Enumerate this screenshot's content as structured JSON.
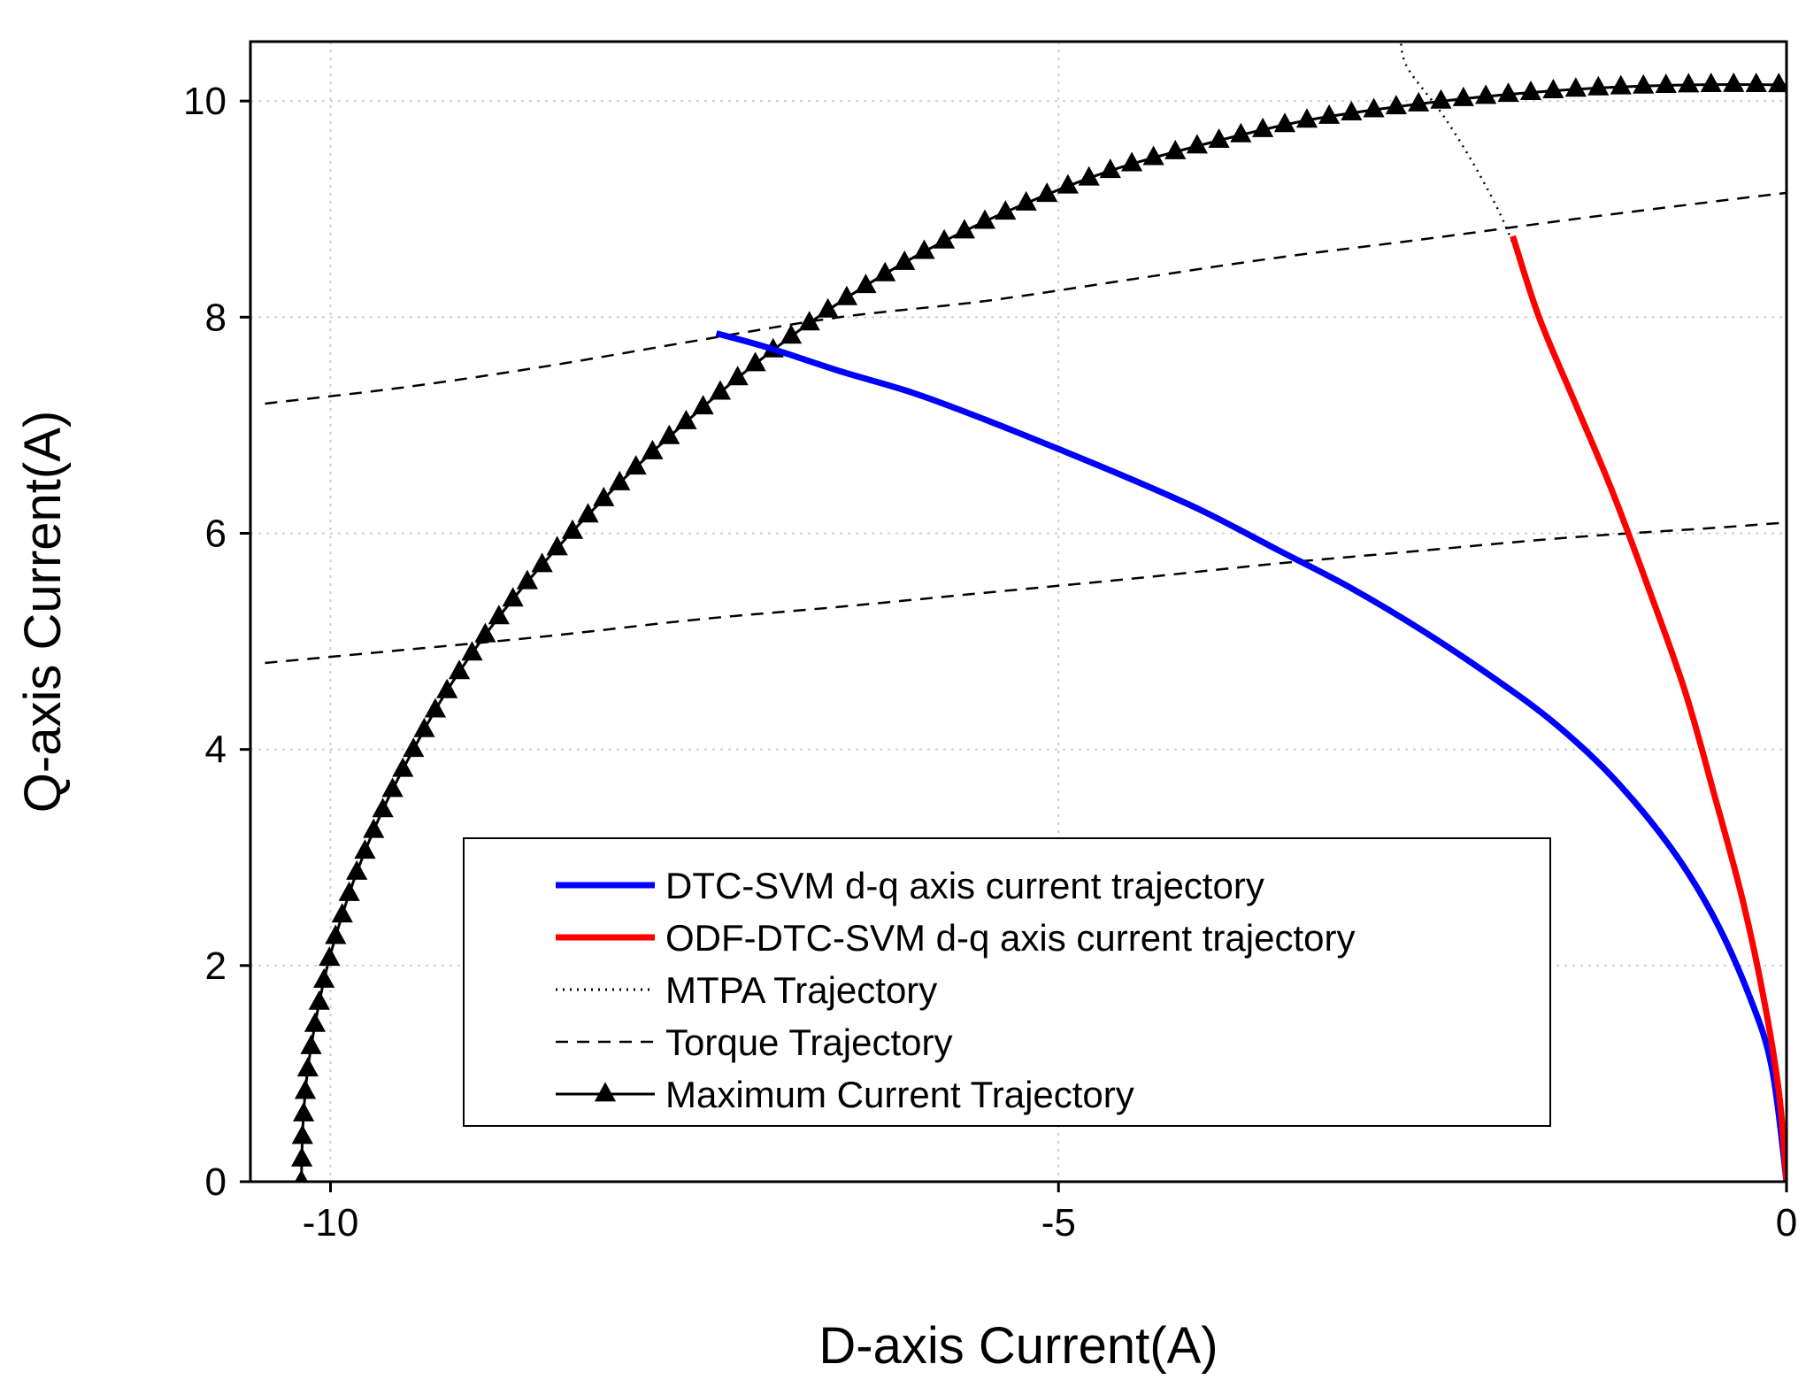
{
  "chart_data": {
    "type": "line",
    "title": "",
    "xlabel": "D-axis Current(A)",
    "ylabel": "Q-axis Current(A)",
    "xlim": [
      -10.55,
      0
    ],
    "ylim": [
      0,
      10.55
    ],
    "xticks": [
      -10,
      -5,
      0
    ],
    "xtick_labels": [
      "-10",
      "-5",
      "0"
    ],
    "yticks": [
      0,
      2,
      4,
      6,
      8,
      10
    ],
    "ytick_labels": [
      "0",
      "2",
      "4",
      "6",
      "8",
      "10"
    ],
    "grid": true,
    "legend_position": "lower-center",
    "series": [
      {
        "name": "DTC-SVM d-q axis current trajectory",
        "style": "solid-thick",
        "color": "#0000ff",
        "points": [
          [
            0,
            0
          ],
          [
            -0.1,
            1.05
          ],
          [
            -0.25,
            1.7
          ],
          [
            -0.5,
            2.45
          ],
          [
            -0.8,
            3.1
          ],
          [
            -1.2,
            3.75
          ],
          [
            -1.6,
            4.25
          ],
          [
            -2,
            4.65
          ],
          [
            -2.5,
            5.1
          ],
          [
            -3,
            5.5
          ],
          [
            -3.5,
            5.85
          ],
          [
            -4,
            6.2
          ],
          [
            -4.5,
            6.5
          ],
          [
            -5,
            6.78
          ],
          [
            -5.5,
            7.05
          ],
          [
            -6,
            7.3
          ],
          [
            -6.5,
            7.5
          ],
          [
            -7,
            7.72
          ],
          [
            -7.35,
            7.85
          ]
        ]
      },
      {
        "name": "ODF-DTC-SVM d-q axis current trajectory",
        "style": "solid-thick",
        "color": "#ff0000",
        "points": [
          [
            0,
            0
          ],
          [
            -0.05,
            0.8
          ],
          [
            -0.15,
            1.65
          ],
          [
            -0.3,
            2.6
          ],
          [
            -0.5,
            3.6
          ],
          [
            -0.7,
            4.55
          ],
          [
            -0.95,
            5.5
          ],
          [
            -1.2,
            6.4
          ],
          [
            -1.45,
            7.2
          ],
          [
            -1.7,
            8
          ],
          [
            -1.88,
            8.75
          ]
        ]
      },
      {
        "name": "MTPA Trajectory",
        "style": "dotted",
        "color": "#000000",
        "points": [
          [
            0,
            0
          ],
          [
            -0.05,
            0.8
          ],
          [
            -0.15,
            1.65
          ],
          [
            -0.3,
            2.6
          ],
          [
            -0.5,
            3.6
          ],
          [
            -0.7,
            4.55
          ],
          [
            -0.95,
            5.5
          ],
          [
            -1.2,
            6.4
          ],
          [
            -1.45,
            7.2
          ],
          [
            -1.7,
            8
          ],
          [
            -1.9,
            8.75
          ],
          [
            -2.1,
            9.3
          ],
          [
            -2.35,
            9.85
          ],
          [
            -2.6,
            10.3
          ],
          [
            -2.65,
            10.55
          ]
        ]
      },
      {
        "name": "Torque Trajectory",
        "style": "dashed",
        "color": "#000000",
        "points": [
          [
            -10.45,
            7.2
          ],
          [
            -9.5,
            7.35
          ],
          [
            -8.5,
            7.55
          ],
          [
            -7.5,
            7.78
          ],
          [
            -6.5,
            8
          ],
          [
            -5.5,
            8.15
          ],
          [
            -4.5,
            8.35
          ],
          [
            -3.5,
            8.55
          ],
          [
            -2.5,
            8.72
          ],
          [
            -1.5,
            8.9
          ],
          [
            -0.5,
            9.07
          ],
          [
            0,
            9.15
          ]
        ]
      },
      {
        "name": "",
        "style": "dashed",
        "color": "#000000",
        "points": [
          [
            -10.45,
            4.8
          ],
          [
            -9.5,
            4.92
          ],
          [
            -8.5,
            5.05
          ],
          [
            -7.5,
            5.2
          ],
          [
            -6.5,
            5.32
          ],
          [
            -5.5,
            5.45
          ],
          [
            -4.5,
            5.58
          ],
          [
            -3.5,
            5.72
          ],
          [
            -2.5,
            5.84
          ],
          [
            -1.5,
            5.96
          ],
          [
            -0.5,
            6.05
          ],
          [
            0,
            6.1
          ]
        ]
      },
      {
        "name": "Maximum Current Trajectory",
        "style": "solid-triangle-markers",
        "color": "#000000",
        "points": [
          [
            -10.2,
            0
          ],
          [
            -10.19,
            0.5
          ],
          [
            -10.16,
            1
          ],
          [
            -10.1,
            1.5
          ],
          [
            -10.02,
            2
          ],
          [
            -9.9,
            2.55
          ],
          [
            -9.78,
            3
          ],
          [
            -9.62,
            3.5
          ],
          [
            -9.43,
            4
          ],
          [
            -9.22,
            4.5
          ],
          [
            -8.97,
            5
          ],
          [
            -8.68,
            5.5
          ],
          [
            -8.35,
            6
          ],
          [
            -7.95,
            6.55
          ],
          [
            -7.5,
            7.1
          ],
          [
            -7.1,
            7.55
          ],
          [
            -6.6,
            8.05
          ],
          [
            -6,
            8.55
          ],
          [
            -5.4,
            8.95
          ],
          [
            -4.7,
            9.33
          ],
          [
            -4,
            9.6
          ],
          [
            -3.3,
            9.82
          ],
          [
            -2.6,
            9.96
          ],
          [
            -2,
            10.05
          ],
          [
            -1.3,
            10.12
          ],
          [
            -0.6,
            10.15
          ],
          [
            0,
            10.15
          ]
        ]
      }
    ]
  }
}
